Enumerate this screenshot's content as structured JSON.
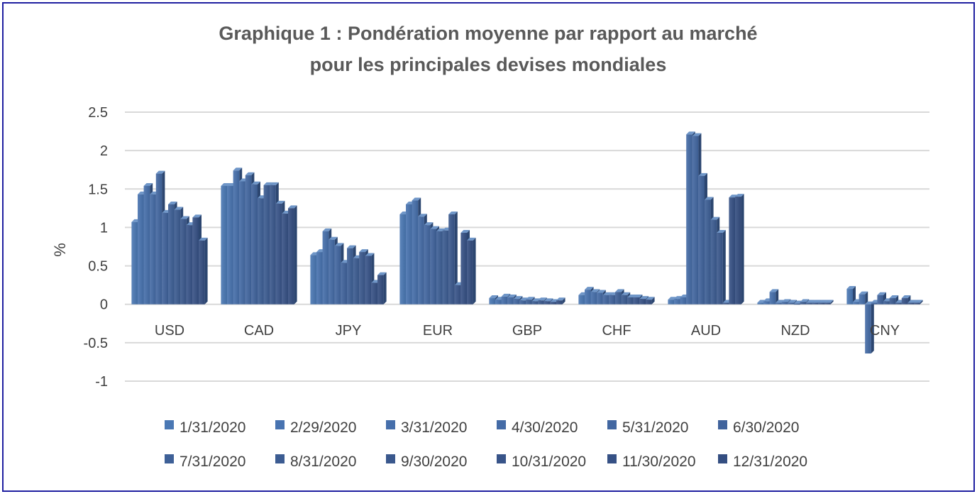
{
  "chart_data": {
    "type": "bar",
    "title_lines": [
      "Graphique 1 : Pondération moyenne par rapport au marché",
      "pour les principales devises mondiales"
    ],
    "xlabel": "",
    "ylabel": "%",
    "ylim": [
      -1,
      2.5
    ],
    "yticks": [
      "2.5",
      "2",
      "1.5",
      "1",
      "0.5",
      "0",
      "-0.5",
      "-1"
    ],
    "ytick_values": [
      2.5,
      2,
      1.5,
      1,
      0.5,
      0,
      -0.5,
      -1
    ],
    "grid": true,
    "legend_position": "bottom",
    "categories": [
      "USD",
      "CAD",
      "JPY",
      "EUR",
      "GBP",
      "CHF",
      "AUD",
      "NZD",
      "CNY"
    ],
    "series": [
      {
        "name": "1/31/2020",
        "color": "#4a78b4",
        "values": [
          1.07,
          1.54,
          0.64,
          1.17,
          0.08,
          0.12,
          0.06,
          0.02,
          0.2
        ]
      },
      {
        "name": "2/29/2020",
        "color": "#4873b0",
        "values": [
          1.43,
          1.54,
          0.68,
          1.3,
          0.06,
          0.19,
          0.07,
          0.04,
          0.03
        ]
      },
      {
        "name": "3/31/2020",
        "color": "#466fab",
        "values": [
          1.54,
          1.74,
          0.95,
          1.35,
          0.1,
          0.16,
          0.09,
          0.16,
          0.13
        ]
      },
      {
        "name": "4/30/2020",
        "color": "#446ba6",
        "values": [
          1.43,
          1.6,
          0.84,
          1.14,
          0.09,
          0.15,
          2.21,
          0.02,
          -0.64
        ]
      },
      {
        "name": "5/31/2020",
        "color": "#4267a1",
        "values": [
          1.7,
          1.68,
          0.76,
          1.03,
          0.07,
          0.12,
          2.19,
          0.03,
          0.02
        ]
      },
      {
        "name": "6/30/2020",
        "color": "#40639c",
        "values": [
          1.19,
          1.56,
          0.54,
          0.98,
          0.05,
          0.12,
          1.67,
          0.02,
          0.12
        ]
      },
      {
        "name": "7/31/2020",
        "color": "#3e6097",
        "values": [
          1.3,
          1.38,
          0.73,
          0.95,
          0.06,
          0.16,
          1.36,
          0.01,
          0.04
        ]
      },
      {
        "name": "8/31/2020",
        "color": "#3c5c92",
        "values": [
          1.23,
          1.55,
          0.6,
          0.96,
          0.04,
          0.12,
          1.1,
          0.03,
          0.08
        ]
      },
      {
        "name": "9/30/2020",
        "color": "#3a588d",
        "values": [
          1.11,
          1.55,
          0.68,
          1.17,
          0.05,
          0.09,
          0.93,
          0.02,
          0.02
        ]
      },
      {
        "name": "10/31/2020",
        "color": "#385489",
        "values": [
          1.03,
          1.31,
          0.63,
          0.25,
          0.04,
          0.09,
          0.02,
          0.02,
          0.08
        ]
      },
      {
        "name": "11/30/2020",
        "color": "#365185",
        "values": [
          1.13,
          1.18,
          0.28,
          0.93,
          0.03,
          0.07,
          1.39,
          0.02,
          0.02
        ]
      },
      {
        "name": "12/31/2020",
        "color": "#344e81",
        "values": [
          0.83,
          1.25,
          0.38,
          0.83,
          0.05,
          0.06,
          1.4,
          0.02,
          0.02
        ]
      }
    ]
  }
}
